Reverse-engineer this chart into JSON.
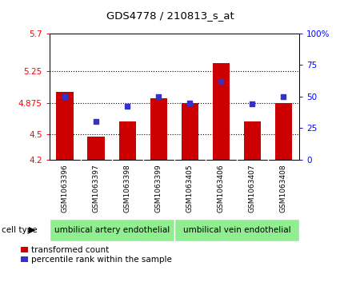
{
  "title": "GDS4778 / 210813_s_at",
  "samples": [
    "GSM1063396",
    "GSM1063397",
    "GSM1063398",
    "GSM1063399",
    "GSM1063405",
    "GSM1063406",
    "GSM1063407",
    "GSM1063408"
  ],
  "bar_values": [
    5.0,
    4.47,
    4.65,
    4.93,
    4.87,
    5.35,
    4.65,
    4.87
  ],
  "dot_values": [
    50,
    30,
    42,
    50,
    45,
    62,
    44,
    50
  ],
  "ymin": 4.2,
  "ymax": 5.7,
  "yticks": [
    4.2,
    4.5,
    4.875,
    5.25,
    5.7
  ],
  "ytick_labels": [
    "4.2",
    "4.5",
    "4.875",
    "5.25",
    "5.7"
  ],
  "y2min": 0,
  "y2max": 100,
  "y2ticks": [
    0,
    25,
    50,
    75,
    100
  ],
  "y2tick_labels": [
    "0",
    "25",
    "50",
    "75",
    "100%"
  ],
  "grid_lines": [
    4.5,
    4.875,
    5.25
  ],
  "bar_color": "#cc0000",
  "dot_color": "#3333cc",
  "cell_types": [
    "umbilical artery endothelial",
    "umbilical vein endothelial"
  ],
  "cell_type_ranges": [
    [
      0,
      3
    ],
    [
      4,
      7
    ]
  ],
  "cell_type_color": "#90ee90",
  "bg_color": "#d3d3d3",
  "legend_bar_label": "transformed count",
  "legend_dot_label": "percentile rank within the sample",
  "fig_width": 4.25,
  "fig_height": 3.63,
  "dpi": 100
}
